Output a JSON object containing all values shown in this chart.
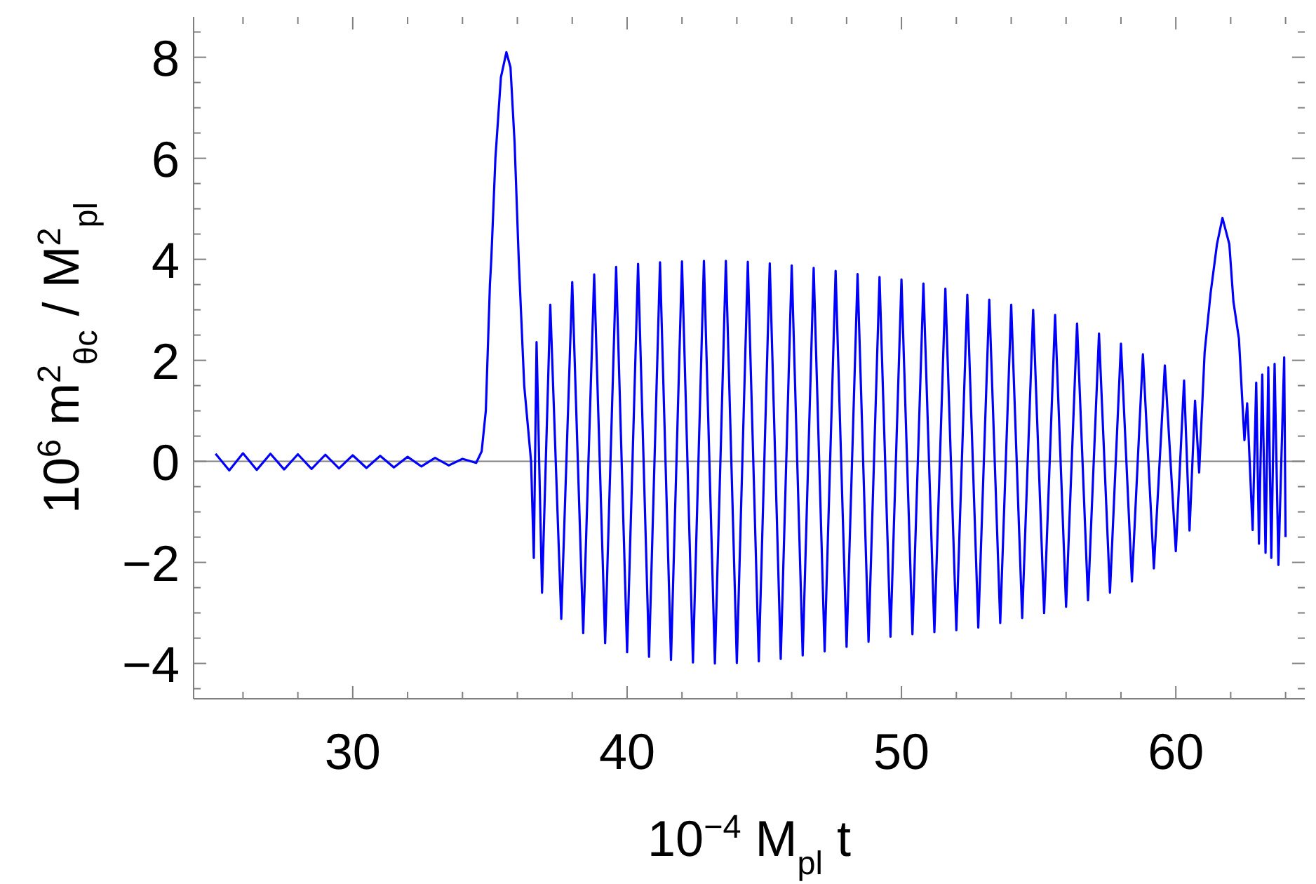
{
  "chart_data": {
    "type": "line",
    "xlabel": "10$^{−4}$ M$_{pl}$ t",
    "ylabel": "10$^{6}$ m$^{2}$$_{θc}$ / M$^{2}$$_{pl}$",
    "xlim": [
      24.2,
      64.7
    ],
    "ylim": [
      -4.7,
      8.8
    ],
    "xticks": [
      {
        "value": 26,
        "label": null
      },
      {
        "value": 28,
        "label": null
      },
      30,
      {
        "value": 32,
        "label": null
      },
      {
        "value": 34,
        "label": null
      },
      {
        "value": 36,
        "label": null
      },
      {
        "value": 38,
        "label": null
      },
      40,
      {
        "value": 42,
        "label": null
      },
      {
        "value": 44,
        "label": null
      },
      {
        "value": 46,
        "label": null
      },
      {
        "value": 48,
        "label": null
      },
      50,
      {
        "value": 52,
        "label": null
      },
      {
        "value": 54,
        "label": null
      },
      {
        "value": 56,
        "label": null
      },
      {
        "value": 58,
        "label": null
      },
      60,
      {
        "value": 62,
        "label": null
      },
      {
        "value": 64,
        "label": null
      }
    ],
    "yticks": [
      {
        "value": -4.5,
        "label": null
      },
      {
        "value": -4,
        "label": "−4"
      },
      {
        "value": -3.5,
        "label": null
      },
      {
        "value": -3,
        "label": null
      },
      {
        "value": -2.5,
        "label": null
      },
      {
        "value": -2,
        "label": "−2"
      },
      {
        "value": -1.5,
        "label": null
      },
      {
        "value": -1,
        "label": null
      },
      {
        "value": -0.5,
        "label": null
      },
      0,
      {
        "value": 0.5,
        "label": null
      },
      {
        "value": 1,
        "label": null
      },
      {
        "value": 1.5,
        "label": null
      },
      2,
      {
        "value": 2.5,
        "label": null
      },
      {
        "value": 3,
        "label": null
      },
      {
        "value": 3.5,
        "label": null
      },
      4,
      {
        "value": 4.5,
        "label": null
      },
      {
        "value": 5,
        "label": null
      },
      {
        "value": 5.5,
        "label": null
      },
      6,
      {
        "value": 6.5,
        "label": null
      },
      {
        "value": 7,
        "label": null
      },
      {
        "value": 7.5,
        "label": null
      },
      8,
      {
        "value": 8.5,
        "label": null
      }
    ],
    "ref_lines": [
      {
        "axis": "y",
        "value": 0,
        "label": null,
        "color": "#808080"
      }
    ],
    "series": [
      {
        "color": "#0000ff",
        "x": [
          25.0,
          25.5,
          26,
          26.5,
          27,
          27.5,
          28,
          28.5,
          29,
          29.5,
          30,
          30.5,
          31,
          31.5,
          32,
          32.5,
          33,
          33.5,
          34,
          34.5,
          34.7,
          34.85,
          35.0,
          35.05,
          35.2,
          35.4,
          35.6,
          35.75,
          35.9,
          36.05,
          36.25,
          36.5,
          36.6,
          36.7,
          36.9,
          37.2,
          37.6,
          38.0,
          38.4,
          38.8,
          39.2,
          39.6,
          40.0,
          40.4,
          40.8,
          41.2,
          41.6,
          42.0,
          42.4,
          42.8,
          43.2,
          43.6,
          44.0,
          44.4,
          44.8,
          45.2,
          45.6,
          46.0,
          46.4,
          46.8,
          47.2,
          47.6,
          48.0,
          48.4,
          48.8,
          49.2,
          49.6,
          50.0,
          50.4,
          50.8,
          51.2,
          51.6,
          52.0,
          52.4,
          52.8,
          53.2,
          53.6,
          54.0,
          54.4,
          54.8,
          55.2,
          55.6,
          56.0,
          56.4,
          56.8,
          57.2,
          57.6,
          58.0,
          58.4,
          58.8,
          59.2,
          59.6,
          60.0,
          60.3,
          60.5,
          60.7,
          60.85,
          61.05,
          61.27,
          61.5,
          61.7,
          61.95,
          62.1,
          62.3,
          62.5,
          62.6,
          62.8,
          62.93,
          63.03,
          63.15,
          63.27,
          63.37,
          63.48,
          63.6,
          63.74,
          63.95,
          64.0
        ],
        "values": [
          0.15,
          -0.18,
          0.16,
          -0.17,
          0.15,
          -0.16,
          0.14,
          -0.15,
          0.13,
          -0.14,
          0.12,
          -0.13,
          0.11,
          -0.12,
          0.09,
          -0.1,
          0.07,
          -0.08,
          0.05,
          -0.03,
          0.2,
          1.0,
          3.5,
          4.0,
          6.0,
          7.6,
          8.1,
          7.8,
          6.3,
          4.0,
          1.5,
          0,
          -1.91,
          2.36,
          -2.6,
          3.1,
          -3.12,
          3.55,
          -3.4,
          3.7,
          -3.6,
          3.85,
          -3.78,
          3.91,
          -3.87,
          3.94,
          -3.93,
          3.96,
          -3.98,
          3.97,
          -4.0,
          3.97,
          -3.99,
          3.95,
          -3.96,
          3.92,
          -3.91,
          3.88,
          -3.84,
          3.83,
          -3.76,
          3.77,
          -3.67,
          3.71,
          -3.57,
          3.65,
          -3.47,
          3.6,
          -3.42,
          3.52,
          -3.38,
          3.42,
          -3.34,
          3.3,
          -3.29,
          3.2,
          -3.2,
          3.1,
          -3.1,
          3.0,
          -3.0,
          2.9,
          -2.88,
          2.73,
          -2.75,
          2.53,
          -2.6,
          2.33,
          -2.38,
          2.12,
          -2.12,
          1.9,
          -1.78,
          1.6,
          -1.37,
          1.2,
          -0.22,
          2.16,
          3.34,
          4.3,
          4.82,
          4.3,
          3.16,
          2.43,
          0.42,
          1.15,
          -1.36,
          1.56,
          -1.63,
          1.72,
          -1.81,
          1.86,
          -1.91,
          1.93,
          -2.05,
          2.06,
          -1.5
        ]
      }
    ]
  }
}
